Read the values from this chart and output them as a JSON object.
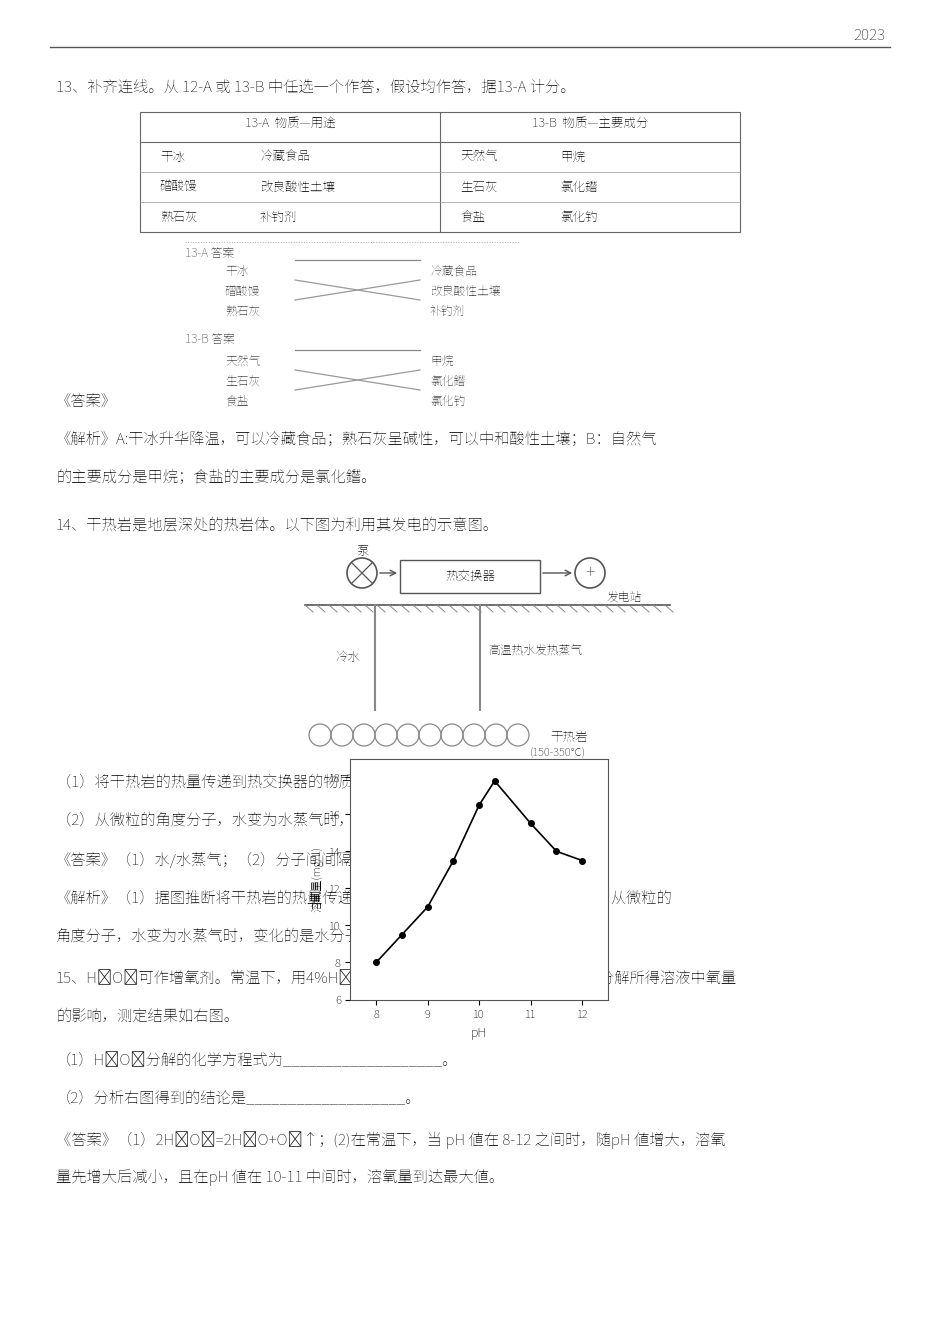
{
  "page_num": "2023",
  "bg_color": "#ffffff",
  "q13_title": "13、补齐连线。从 12-A 或 13-B 中任选一个作答，假设均作答，据13-A 计分。",
  "table_13A_header": "13-A  物质—用途",
  "table_13B_header": "13-B  物质—主要成分",
  "table_13A_col1": [
    "干冰",
    "磳酸馒",
    "熟石灰"
  ],
  "table_13A_col2": [
    "冷藏食品",
    "改良酸性土壤",
    "补钓剂"
  ],
  "table_13B_col1": [
    "天然气",
    "生石灰",
    "食盐"
  ],
  "table_13B_col2": [
    "甲烷",
    "氯化鑙",
    "氯化钓"
  ],
  "ans13_label": "《答案》",
  "ans13A_label": "13-A 答案",
  "ans13A_left": [
    "干冰",
    "磳酸馒",
    "熟石灰"
  ],
  "ans13A_right": [
    "冷藏食品",
    "改良酸性土壤",
    "补钓剂"
  ],
  "ans13B_label": "13-B 答案",
  "ans13B_left": [
    "天然气",
    "生石灰",
    "食盐"
  ],
  "ans13B_right": [
    "甲烷",
    "氯化鑙",
    "氯化钓"
  ],
  "exp13_line1": "《解析》A:干冰升华降温，可以冷藏食品；熟石灰呈碱性，可以中和酸性土壤；B：自然气",
  "exp13_line2": "的主要成分是甲烷；食盐的主要成分是氯化鑙。",
  "q14_title": "14、干热岩是地层深处的热岩体。以下图为利用其发电的示意图。",
  "diag14_pump": "泵",
  "diag14_he": "热交换器",
  "diag14_gen": "发电站",
  "diag14_coldwater": "冷水",
  "diag14_hotwater": "高温热水发热蒸气",
  "diag14_rock": "干热岩",
  "diag14_rocktemp": "(150-350℃)",
  "q14_q1": "（1）将干热岩的热量传递到热交换器的物质是 ______。",
  "q14_q2": "（2）从微粒的角度分子，水变为水蒸气时，变化的是 ________。",
  "ans14": "《答案》（1）水/水蒸气；（2）分子间间隔。",
  "exp14_line1": "《解析》（1）据图推断将干热岩的热量传递到热交换器的物质是水/水蒸气；（2）从微粒的",
  "exp14_line2": "角度分子，水变为水蒸气时，变化的是水分子的分子间间隔增大。",
  "q15_line1": "15、H₂O₂可作增氧剂。常温下，用4%H₂O₂溶液进展试验，争设lH对H₂O₂分解所得溶液中氧量",
  "q15_line2": "的影响，测定结果如右图。",
  "q15_q1": "（1）H₂O₂分解的化学方程式为___________________。",
  "q15_q2": "（2）分析右图得到的结论是___________________。",
  "ans15_line1": "《答案》（1）2H₂O₂=2H₂O+O₂↑；(2)在常温下，当 pH 値在 8-12 之间时，随pH 値增大，溶氧",
  "ans15_line2": "量先增大后减小，且在pH 値在 10-11 中间时，溶氧量到达最大値。",
  "graph_xlabel": "pH",
  "graph_ylabel": "溶氧量(mg/L)",
  "graph_x": [
    8,
    8.5,
    9,
    9.5,
    10,
    10.3,
    11,
    11.5,
    12
  ],
  "graph_y": [
    8.0,
    9.5,
    11.0,
    13.5,
    16.5,
    17.8,
    15.5,
    14.0,
    13.5
  ],
  "graph_xlim": [
    7.5,
    12.5
  ],
  "graph_ylim": [
    6,
    19
  ],
  "graph_yticks": [
    6,
    8,
    10,
    12,
    14,
    16,
    18
  ],
  "graph_xticks": [
    8,
    9,
    10,
    11,
    12
  ]
}
